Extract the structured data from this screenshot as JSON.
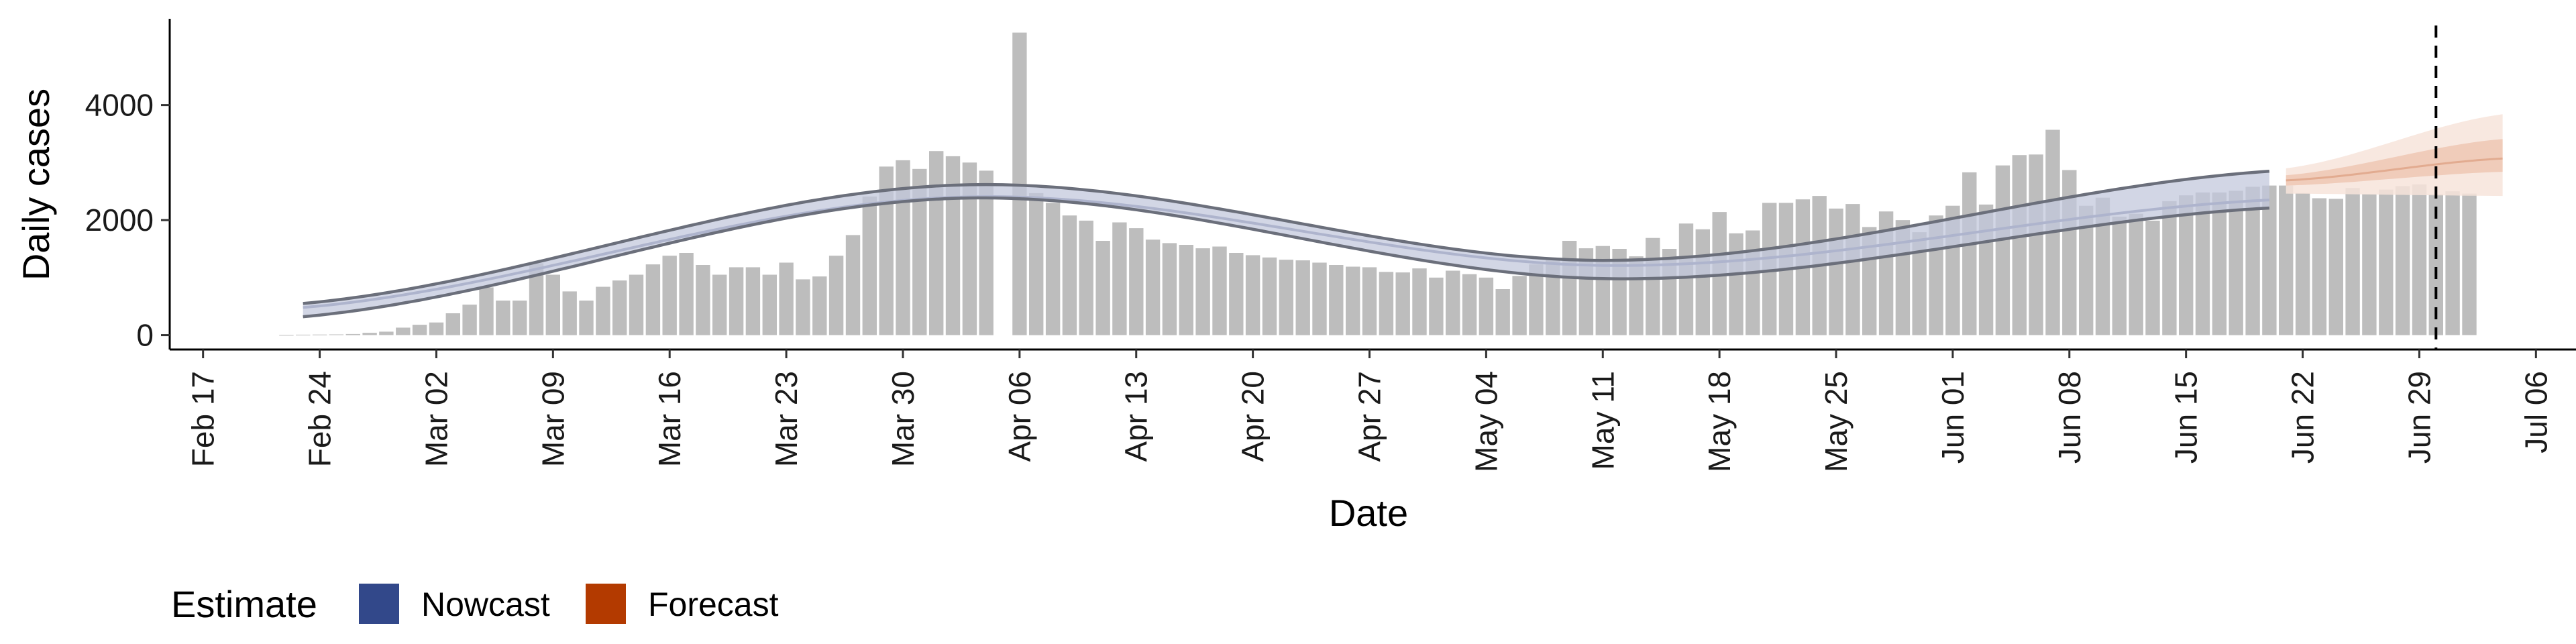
{
  "chart_data": {
    "type": "bar",
    "title": "",
    "xlabel": "Date",
    "ylabel": "Daily cases",
    "x_ticks": [
      "Feb 17",
      "Feb 24",
      "Mar 02",
      "Mar 09",
      "Mar 16",
      "Mar 23",
      "Mar 30",
      "Apr 06",
      "Apr 13",
      "Apr 20",
      "Apr 27",
      "May 04",
      "May 11",
      "May 18",
      "May 25",
      "Jun 01",
      "Jun 08",
      "Jun 15",
      "Jun 22",
      "Jun 29",
      "Jul 06"
    ],
    "y_ticks": [
      0,
      2000,
      4000
    ],
    "xlim": [
      "2020-02-15",
      "2020-07-08"
    ],
    "ylim": [
      -250,
      5500
    ],
    "grid": false,
    "start_date": "2020-02-22",
    "cases": [
      3,
      8,
      10,
      12,
      20,
      40,
      60,
      130,
      180,
      220,
      380,
      530,
      830,
      600,
      600,
      1250,
      1050,
      760,
      600,
      840,
      950,
      1050,
      1230,
      1380,
      1430,
      1220,
      1050,
      1180,
      1180,
      1050,
      1260,
      970,
      1020,
      1380,
      1740,
      2410,
      2930,
      3040,
      2890,
      3200,
      3110,
      3000,
      2860,
      null,
      5260,
      2470,
      2300,
      2080,
      1990,
      1640,
      1960,
      1860,
      1660,
      1600,
      1570,
      1510,
      1540,
      1430,
      1390,
      1350,
      1310,
      1300,
      1260,
      1220,
      1190,
      1180,
      1100,
      1090,
      1160,
      1000,
      1120,
      1060,
      1000,
      800,
      1030,
      1230,
      1330,
      1640,
      1510,
      1550,
      1500,
      1370,
      1690,
      1500,
      1940,
      1840,
      2140,
      1770,
      1820,
      2300,
      2300,
      2360,
      2420,
      2200,
      2280,
      1880,
      2150,
      2000,
      1790,
      2080,
      2250,
      2830,
      2270,
      2950,
      3130,
      3140,
      3570,
      2870,
      2250,
      2390,
      2060,
      2110,
      1990,
      2330,
      2430,
      2480,
      2480,
      2510,
      2580,
      2600,
      2600,
      2470,
      2380,
      2370,
      2560,
      2450,
      2530,
      2590,
      2620,
      2450,
      2500,
      2460
    ],
    "nowcast": {
      "start_date": "2020-02-23",
      "end_date": "2020-06-20",
      "median": [
        480,
        2400,
        1210,
        2350
      ],
      "lower_90": [
        320,
        2380,
        980,
        2210
      ],
      "upper_90": [
        550,
        2610,
        1300,
        2850
      ]
    },
    "forecast": {
      "start_date": "2020-06-21",
      "end_date": "2020-07-04",
      "median": [
        2690,
        3070
      ],
      "lower_50": [
        2600,
        2840
      ],
      "upper_50": [
        2780,
        3410
      ],
      "lower_90": [
        2460,
        2420
      ],
      "upper_90": [
        2900,
        3840
      ]
    },
    "current_date_line": "2020-06-30",
    "legend": {
      "title": "Estimate",
      "position": "bottom-left",
      "items": [
        {
          "label": "Nowcast",
          "color": "#32488a"
        },
        {
          "label": "Forecast",
          "color": "#b33a00"
        }
      ]
    },
    "colors": {
      "bars": "#bdbdbd",
      "nowcast_band": "#c3c8dc",
      "nowcast_line": "#6b6f7b",
      "forecast_band_outer": "#f7e4da",
      "forecast_band_inner": "#eec7b3",
      "axis": "#000000"
    }
  }
}
